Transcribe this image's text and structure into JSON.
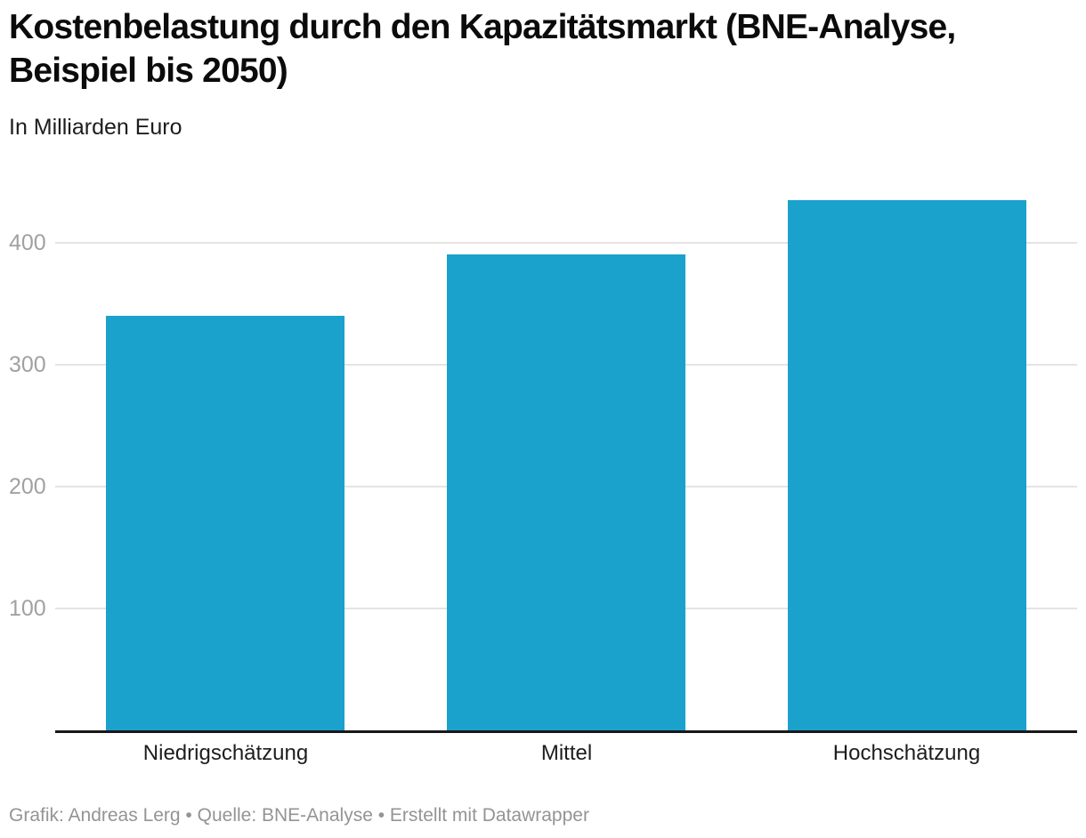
{
  "header": {
    "title": "Kostenbelastung durch den Kapazitätsmarkt (BNE-Analyse, Beispiel bis 2050)",
    "subtitle": "In Milliarden Euro"
  },
  "footer": {
    "text": "Grafik: Andreas Lerg • Quelle: BNE-Analyse • Erstellt mit Datawrapper"
  },
  "colors": {
    "bar": "#1aa2cd",
    "gridline": "#e4e4e4",
    "axis_line": "#18181b",
    "tick_label": "#a1a1a1",
    "x_label": "#1d1d1d",
    "footer_text": "#949494",
    "title": "#0b0b0b",
    "background": "#ffffff"
  },
  "chart_data": {
    "type": "bar",
    "categories": [
      "Niedrigschätzung",
      "Mittel",
      "Hochschätzung"
    ],
    "values": [
      340,
      390,
      435
    ],
    "title": "Kostenbelastung durch den Kapazitätsmarkt (BNE-Analyse, Beispiel bis 2050)",
    "subtitle": "In Milliarden Euro",
    "xlabel": "",
    "ylabel": "In Milliarden Euro",
    "unit": "Milliarden Euro",
    "ylim": [
      0,
      445
    ],
    "yticks": [
      100,
      200,
      300,
      400
    ],
    "grid": "horizontal",
    "legend": "none",
    "bar_color": "#1aa2cd",
    "source": "Grafik: Andreas Lerg • Quelle: BNE-Analyse • Erstellt mit Datawrapper"
  }
}
